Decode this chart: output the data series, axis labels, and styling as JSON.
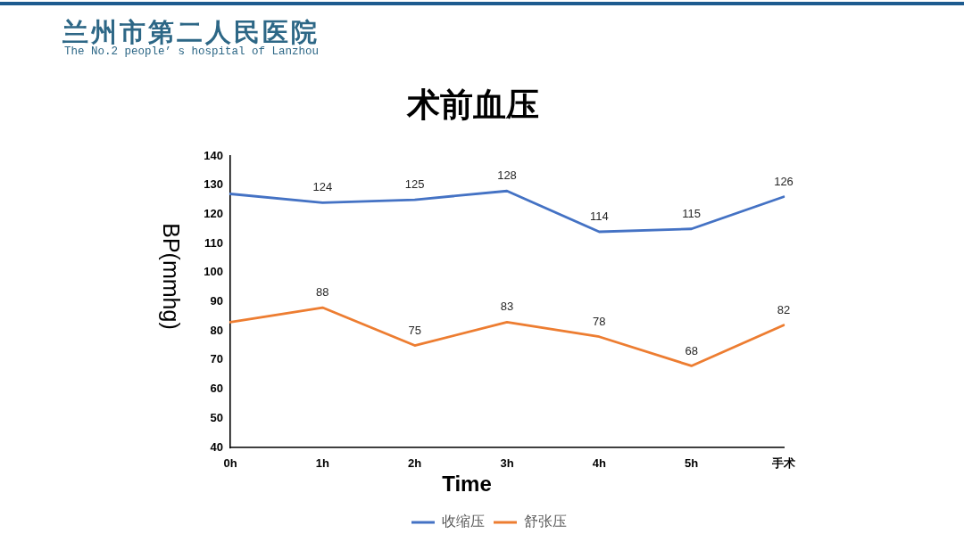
{
  "chart_data": {
    "type": "line",
    "title": "术前血压",
    "xlabel": "Time",
    "ylabel": "BP(mmhg)",
    "annotations": [
      "兰州市第二人民医院",
      "The No.2 people’ s hospital of Lanzhou"
    ],
    "categories": [
      "0h",
      "1h",
      "2h",
      "3h",
      "4h",
      "5h",
      "手术"
    ],
    "series": [
      {
        "name": "收缩压",
        "color": "#4472c4",
        "values": [
          127,
          124,
          125,
          128,
          114,
          115,
          126
        ],
        "value_labels": [
          null,
          "124",
          "125",
          "128",
          "114",
          "115",
          "126"
        ]
      },
      {
        "name": "舒张压",
        "color": "#ed7d31",
        "values": [
          83,
          88,
          75,
          83,
          78,
          68,
          82
        ],
        "value_labels": [
          null,
          "88",
          "75",
          "83",
          "78",
          "68",
          "82"
        ]
      }
    ],
    "ylim": [
      40,
      140
    ],
    "yticks": [
      40,
      50,
      60,
      70,
      80,
      90,
      100,
      110,
      120,
      130,
      140
    ],
    "grid": false,
    "legend": "bottom",
    "marker": "none",
    "line_style": "solid"
  }
}
